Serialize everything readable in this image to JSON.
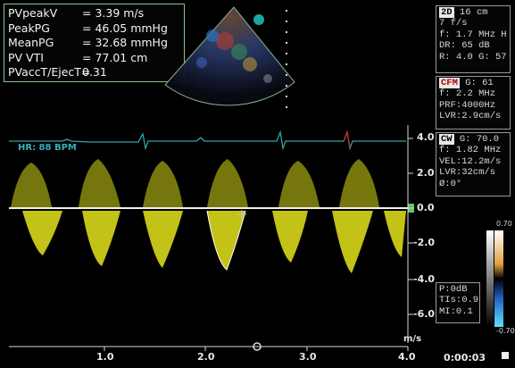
{
  "measurements": [
    {
      "label": "PVpeakV",
      "value": "= 3.39 m/s"
    },
    {
      "label": "PeakPG",
      "value": "= 46.05 mmHg"
    },
    {
      "label": "MeanPG",
      "value": "= 32.68 mmHg"
    },
    {
      "label": "PV VTI",
      "value": "= 77.01 cm"
    },
    {
      "label": "PVaccT/EjecT=",
      "value": "0.31"
    }
  ],
  "heart_rate": "HR: 88 BPM",
  "panel_2d": {
    "mode": "2D",
    "depth": "16 cm",
    "lines": [
      "7 f/s",
      "f: 1.7 MHz H",
      "DR: 65 dB",
      "R: 4.0   G: 57"
    ]
  },
  "panel_cfm": {
    "mode": "CFM",
    "gain": "G: 61",
    "lines": [
      "f: 2.2 MHz",
      "PRF:4000Hz",
      "LVR:2.9cm/s"
    ]
  },
  "panel_cw": {
    "mode": "CW",
    "gain": "G: 70.0",
    "lines": [
      "f: 1.82 MHz",
      "VEL:12.2m/s",
      "LVR:32cm/s",
      "Ø:0°"
    ]
  },
  "panel_power": {
    "lines": [
      "P:0dB",
      "TIs:0.9",
      "MI:0.1"
    ]
  },
  "velocity_scale": [
    "4.0",
    "2.0",
    "0.0",
    "-2.0",
    "-4.0",
    "-6.0"
  ],
  "velocity_unit": "m/s",
  "time_axis": [
    "1.0",
    "2.0",
    "3.0",
    "4.0"
  ],
  "color_scale": {
    "top": "0.70",
    "bottom": "-0.70"
  },
  "timer": "0:00:03",
  "colors": {
    "doppler": "#d8d81a",
    "ecg": "#2aa7a7",
    "border_green": "#8fbf8f",
    "baseline": "#5ec85e"
  }
}
